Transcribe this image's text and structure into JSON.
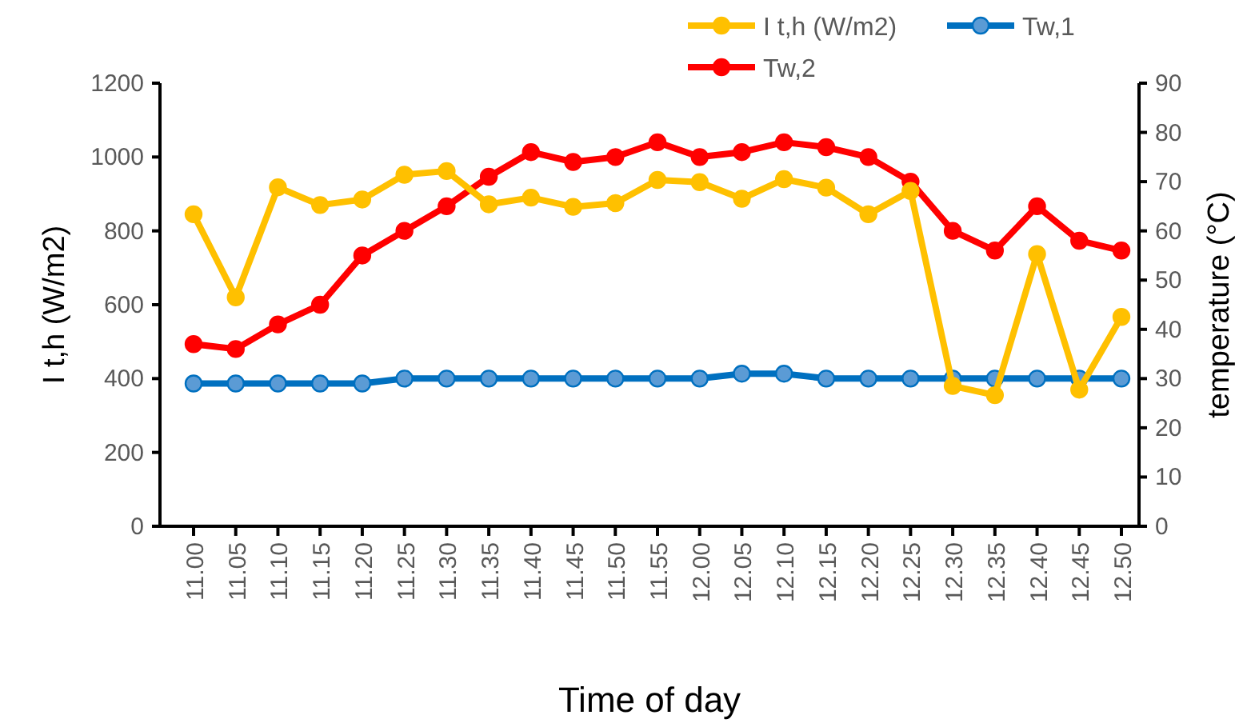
{
  "chart_data": {
    "type": "line",
    "xlabel": "Time of day",
    "ylabel": "I t,h (W/m2)",
    "y2label": "temperature (°C)",
    "categories": [
      "11.00",
      "11.05",
      "11.10",
      "11.15",
      "11.20",
      "11.25",
      "11.30",
      "11.35",
      "11.40",
      "11.45",
      "11.50",
      "11.55",
      "12.00",
      "12.05",
      "12.10",
      "12.15",
      "12.20",
      "12.25",
      "12.30",
      "12.35",
      "12.40",
      "12.45",
      "12.50"
    ],
    "series": [
      {
        "name": "I t,h (W/m2)",
        "color": "#ffc000",
        "values": [
          845,
          620,
          918,
          870,
          885,
          952,
          962,
          872,
          890,
          865,
          875,
          938,
          932,
          887,
          940,
          917,
          845,
          908,
          380,
          355,
          737,
          370,
          567
        ]
      },
      {
        "name": "Tw,1",
        "color": "#0070c0",
        "axis": "y2",
        "values": [
          29,
          29,
          29,
          29,
          29,
          30,
          30,
          30,
          30,
          30,
          30,
          30,
          30,
          31,
          31,
          30,
          30,
          30,
          30,
          30,
          30,
          30,
          30
        ]
      },
      {
        "name": "Tw,2",
        "color": "#ff0000",
        "axis": "y2",
        "values": [
          37,
          36,
          41,
          45,
          55,
          60,
          65,
          71,
          76,
          74,
          75,
          78,
          75,
          76,
          78,
          77,
          75,
          70,
          60,
          56,
          65,
          58,
          56
        ]
      }
    ],
    "ylim": [
      0,
      1200
    ],
    "yticks": [
      0,
      200,
      400,
      600,
      800,
      1000,
      1200
    ],
    "y2lim": [
      0,
      90
    ],
    "y2ticks": [
      0,
      10,
      20,
      30,
      40,
      50,
      60,
      70,
      80,
      90
    ],
    "legend": "top right",
    "marker": "circle",
    "line_style": "solid",
    "grid": false
  }
}
